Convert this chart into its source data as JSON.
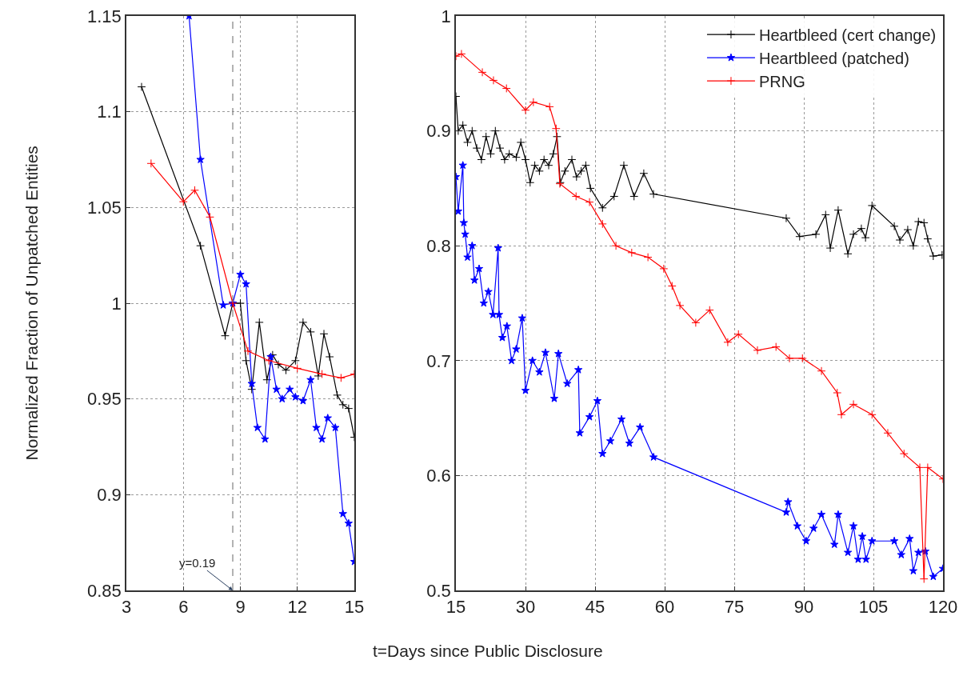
{
  "chart_data": [
    {
      "type": "line",
      "ylabel": "Normalized Fraction of Unpatched Entities",
      "xlim": [
        3,
        15
      ],
      "xticks": [
        3,
        6,
        9,
        12,
        15
      ],
      "ylim": [
        0.85,
        1.15
      ],
      "yticks": [
        0.85,
        0.9,
        0.95,
        1,
        1.05,
        1.1,
        1.15
      ],
      "grid": true,
      "legend": false,
      "series": [
        {
          "color": "#000000",
          "marker": "cross",
          "x": [
            3.8,
            6.9,
            8.2,
            8.6,
            9.0,
            9.3,
            9.6,
            10.0,
            10.4,
            10.7,
            11.0,
            11.4,
            11.9,
            12.3,
            12.7,
            13.1,
            13.4,
            13.7,
            14.1,
            14.4,
            14.7,
            15.0
          ],
          "values": [
            1.113,
            1.03,
            0.983,
            1.0,
            1.0,
            0.97,
            0.955,
            0.99,
            0.96,
            0.973,
            0.968,
            0.965,
            0.97,
            0.99,
            0.985,
            0.962,
            0.984,
            0.972,
            0.952,
            0.947,
            0.945,
            0.93
          ]
        },
        {
          "color": "#0000ff",
          "marker": "star",
          "x": [
            6.3,
            6.9,
            8.1,
            8.6,
            9.0,
            9.3,
            9.6,
            9.9,
            10.3,
            10.6,
            10.9,
            11.2,
            11.6,
            11.9,
            12.3,
            12.7,
            13.0,
            13.3,
            13.6,
            14.0,
            14.4,
            14.7,
            15.0
          ],
          "values": [
            1.15,
            1.075,
            0.999,
            1.0,
            1.015,
            1.01,
            0.958,
            0.935,
            0.929,
            0.972,
            0.955,
            0.95,
            0.955,
            0.951,
            0.949,
            0.96,
            0.935,
            0.929,
            0.94,
            0.935,
            0.89,
            0.885,
            0.865
          ]
        },
        {
          "color": "#ff0000",
          "marker": "cross",
          "x": [
            4.3,
            6.0,
            6.6,
            7.4,
            8.6,
            9.4,
            10.5,
            12.0,
            13.3,
            14.3,
            15.0
          ],
          "values": [
            1.073,
            1.053,
            1.059,
            1.045,
            1.0,
            0.975,
            0.97,
            0.966,
            0.963,
            0.961,
            0.963
          ]
        }
      ],
      "ref_lines": [
        {
          "axis": "x",
          "value": 8.6,
          "color": "#808080",
          "line_style": "dashed"
        }
      ],
      "annotations": [
        {
          "text": "y=0.19",
          "x": 8.6,
          "y": 0.85
        }
      ]
    },
    {
      "type": "line",
      "xlabel": "t=Days since Public Disclosure",
      "xlim": [
        15,
        120
      ],
      "xticks": [
        15,
        30,
        45,
        60,
        75,
        90,
        105,
        120
      ],
      "ylim": [
        0.5,
        1
      ],
      "yticks": [
        0.5,
        0.6,
        0.7,
        0.8,
        0.9,
        1
      ],
      "grid": true,
      "legend": "top right",
      "series": [
        {
          "name": "Heartbleed (cert change)",
          "color": "#000000",
          "marker": "cross",
          "x": [
            15,
            15.5,
            16.5,
            17.5,
            18.5,
            19.5,
            20.5,
            21.5,
            22.5,
            23.5,
            24.5,
            25.5,
            26.5,
            28,
            29,
            30,
            31,
            32,
            33,
            34,
            35,
            36,
            36.8,
            37.5,
            38.5,
            40,
            41,
            42,
            43,
            44,
            46.6,
            49.1,
            51.2,
            53.4,
            55.5,
            57.6,
            86.2,
            89.1,
            92.6,
            94.7,
            95.7,
            97.4,
            99.5,
            100.7,
            102.4,
            103.3,
            104.7,
            109.5,
            110.7,
            112.4,
            113.6,
            114.7,
            115.9,
            116.7,
            117.9,
            119.8
          ],
          "values": [
            0.93,
            0.9,
            0.905,
            0.89,
            0.9,
            0.885,
            0.875,
            0.895,
            0.88,
            0.9,
            0.885,
            0.875,
            0.88,
            0.877,
            0.89,
            0.875,
            0.855,
            0.87,
            0.865,
            0.875,
            0.87,
            0.88,
            0.895,
            0.855,
            0.865,
            0.875,
            0.86,
            0.865,
            0.87,
            0.85,
            0.833,
            0.843,
            0.87,
            0.843,
            0.863,
            0.845,
            0.824,
            0.808,
            0.81,
            0.827,
            0.798,
            0.831,
            0.793,
            0.81,
            0.815,
            0.807,
            0.835,
            0.817,
            0.805,
            0.814,
            0.8,
            0.821,
            0.82,
            0.806,
            0.791,
            0.792
          ]
        },
        {
          "name": "Heartbleed (patched)",
          "color": "#0000ff",
          "marker": "star",
          "x": [
            15,
            15.5,
            16.5,
            16.7,
            17,
            17.5,
            18.5,
            19,
            20,
            21,
            22,
            23,
            24.1,
            24.3,
            25,
            26,
            27,
            28,
            29.3,
            30,
            31.5,
            33,
            34.3,
            36.2,
            37.1,
            39,
            41.4,
            41.7,
            43.8,
            45.5,
            46.6,
            48.3,
            50.7,
            52.4,
            54.7,
            57.6,
            86.2,
            86.6,
            88.6,
            90.5,
            92.1,
            93.8,
            96.6,
            97.4,
            99.5,
            100.7,
            101.7,
            102.6,
            103.4,
            104.7,
            109.5,
            111,
            112.8,
            113.6,
            114.7,
            116.2,
            117.9,
            120
          ],
          "values": [
            0.86,
            0.83,
            0.87,
            0.82,
            0.81,
            0.79,
            0.8,
            0.77,
            0.78,
            0.75,
            0.76,
            0.74,
            0.798,
            0.74,
            0.72,
            0.73,
            0.7,
            0.71,
            0.737,
            0.674,
            0.7,
            0.69,
            0.707,
            0.667,
            0.706,
            0.68,
            0.692,
            0.637,
            0.651,
            0.665,
            0.619,
            0.63,
            0.649,
            0.628,
            0.642,
            0.616,
            0.568,
            0.577,
            0.556,
            0.543,
            0.554,
            0.566,
            0.54,
            0.566,
            0.533,
            0.556,
            0.527,
            0.547,
            0.527,
            0.543,
            0.543,
            0.531,
            0.545,
            0.517,
            0.533,
            0.534,
            0.512,
            0.519
          ]
        },
        {
          "name": "PRNG",
          "color": "#ff0000",
          "marker": "cross",
          "x": [
            15,
            16.2,
            20.7,
            23.1,
            25.9,
            30,
            31.7,
            35.2,
            36.6,
            37.4,
            40.9,
            43.8,
            46.6,
            49.5,
            52.9,
            56.4,
            59.8,
            61.6,
            63.3,
            66.7,
            69.7,
            73.6,
            75.9,
            80,
            84,
            86.9,
            89.7,
            93.8,
            97.2,
            98.1,
            100.7,
            104.7,
            108.1,
            111.6,
            115,
            115.9,
            116.7,
            120
          ],
          "values": [
            0.965,
            0.967,
            0.951,
            0.944,
            0.937,
            0.918,
            0.925,
            0.921,
            0.902,
            0.854,
            0.843,
            0.838,
            0.819,
            0.8,
            0.794,
            0.79,
            0.78,
            0.765,
            0.748,
            0.733,
            0.744,
            0.716,
            0.723,
            0.709,
            0.712,
            0.702,
            0.702,
            0.691,
            0.672,
            0.653,
            0.662,
            0.653,
            0.637,
            0.619,
            0.607,
            0.51,
            0.607,
            0.597
          ]
        }
      ]
    }
  ]
}
